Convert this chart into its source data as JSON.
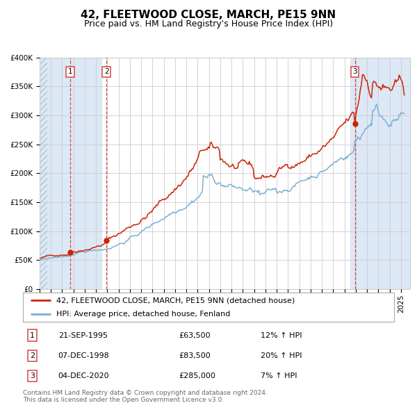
{
  "title": "42, FLEETWOOD CLOSE, MARCH, PE15 9NN",
  "subtitle": "Price paid vs. HM Land Registry's House Price Index (HPI)",
  "hpi_line_color": "#7bafd4",
  "price_line_color": "#cc2200",
  "dot_color": "#cc2200",
  "bg_color": "#ffffff",
  "grid_color": "#cccccc",
  "shade_color": "#dce8f5",
  "dashed_line_color": "#dd4444",
  "ylim": [
    0,
    400000
  ],
  "yticks": [
    0,
    50000,
    100000,
    150000,
    200000,
    250000,
    300000,
    350000,
    400000
  ],
  "ytick_labels": [
    "£0",
    "£50K",
    "£100K",
    "£150K",
    "£200K",
    "£250K",
    "£300K",
    "£350K",
    "£400K"
  ],
  "xlim_start": 1993.0,
  "xlim_end": 2025.8,
  "hatch_end": 1993.7,
  "shade1_start": 1993.7,
  "shade1_end": 1998.5,
  "shade3_start": 2020.5,
  "shade3_end": 2025.8,
  "purchases": [
    {
      "label": "1",
      "date_num": 1995.72,
      "price": 63500,
      "pct": "12%",
      "date_str": "21-SEP-1995"
    },
    {
      "label": "2",
      "date_num": 1998.92,
      "price": 83500,
      "pct": "20%",
      "date_str": "07-DEC-1998"
    },
    {
      "label": "3",
      "date_num": 2020.92,
      "price": 285000,
      "pct": "7%",
      "date_str": "04-DEC-2020"
    }
  ],
  "legend_line1": "42, FLEETWOOD CLOSE, MARCH, PE15 9NN (detached house)",
  "legend_line2": "HPI: Average price, detached house, Fenland",
  "footer": "Contains HM Land Registry data © Crown copyright and database right 2024.\nThis data is licensed under the Open Government Licence v3.0.",
  "title_fontsize": 11,
  "subtitle_fontsize": 9,
  "axis_fontsize": 7.5,
  "legend_fontsize": 8,
  "table_fontsize": 8,
  "footer_fontsize": 6.5
}
